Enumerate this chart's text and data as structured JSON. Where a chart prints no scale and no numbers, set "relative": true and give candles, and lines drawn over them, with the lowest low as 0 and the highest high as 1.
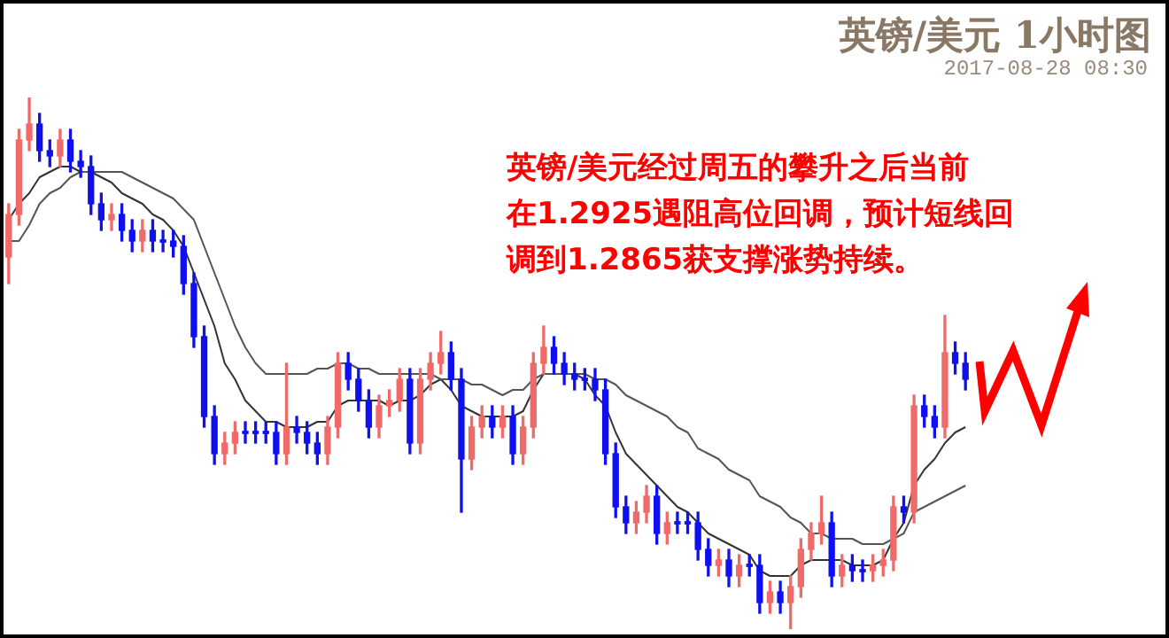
{
  "chart_data": {
    "type": "candlestick",
    "title": "英镑/美元 1小时图",
    "subtitle": "2017-08-28 08:30",
    "annotations": [
      "英镑/美元经过周五的攀升之后当前",
      "在1.2925遇阻高位回调，预计短线回",
      "调到1.2865获支撑涨势持续。"
    ],
    "relative": true,
    "categories": [
      null,
      null,
      null,
      null,
      null,
      null,
      null,
      null,
      null,
      null,
      null,
      null,
      null,
      null,
      null,
      null,
      null,
      null,
      null,
      null,
      null,
      null,
      null,
      null,
      null,
      null,
      null,
      null,
      null,
      null,
      null,
      null,
      null,
      null,
      null,
      null,
      null,
      null,
      null,
      null,
      null,
      null,
      null,
      null,
      null,
      null,
      null,
      null,
      null,
      null,
      null,
      null,
      null,
      null,
      null,
      null,
      null,
      null,
      null,
      null,
      null,
      null,
      null,
      null,
      null,
      null,
      null,
      null,
      null,
      null,
      null,
      null,
      null,
      null,
      null,
      null,
      null,
      null,
      null,
      null,
      null,
      null,
      null,
      null,
      null,
      null,
      null,
      null,
      null,
      null,
      null,
      null,
      null,
      null
    ],
    "ohlc": [
      [
        0.7,
        0.8,
        0.65,
        0.78
      ],
      [
        0.78,
        0.94,
        0.76,
        0.92
      ],
      [
        0.92,
        1,
        0.9,
        0.95
      ],
      [
        0.95,
        0.97,
        0.88,
        0.9
      ],
      [
        0.9,
        0.92,
        0.87,
        0.89
      ],
      [
        0.89,
        0.94,
        0.87,
        0.92
      ],
      [
        0.92,
        0.94,
        0.86,
        0.88
      ],
      [
        0.88,
        0.9,
        0.85,
        0.87
      ],
      [
        0.87,
        0.89,
        0.78,
        0.8
      ],
      [
        0.8,
        0.82,
        0.75,
        0.77
      ],
      [
        0.77,
        0.8,
        0.75,
        0.78
      ],
      [
        0.78,
        0.8,
        0.73,
        0.75
      ],
      [
        0.75,
        0.77,
        0.71,
        0.73
      ],
      [
        0.73,
        0.77,
        0.71,
        0.75
      ],
      [
        0.75,
        0.77,
        0.71,
        0.73
      ],
      [
        0.73,
        0.75,
        0.71,
        0.73
      ],
      [
        0.73,
        0.75,
        0.7,
        0.72
      ],
      [
        0.72,
        0.74,
        0.63,
        0.65
      ],
      [
        0.65,
        0.67,
        0.53,
        0.55
      ],
      [
        0.55,
        0.57,
        0.38,
        0.4
      ],
      [
        0.4,
        0.42,
        0.31,
        0.33
      ],
      [
        0.33,
        0.37,
        0.31,
        0.35
      ],
      [
        0.35,
        0.39,
        0.33,
        0.37
      ],
      [
        0.37,
        0.39,
        0.35,
        0.37
      ],
      [
        0.37,
        0.39,
        0.35,
        0.37
      ],
      [
        0.37,
        0.39,
        0.35,
        0.37
      ],
      [
        0.37,
        0.39,
        0.31,
        0.33
      ],
      [
        0.33,
        0.5,
        0.31,
        0.38
      ],
      [
        0.38,
        0.4,
        0.35,
        0.37
      ],
      [
        0.37,
        0.39,
        0.33,
        0.35
      ],
      [
        0.35,
        0.37,
        0.31,
        0.33
      ],
      [
        0.33,
        0.4,
        0.31,
        0.38
      ],
      [
        0.38,
        0.52,
        0.36,
        0.5
      ],
      [
        0.5,
        0.52,
        0.45,
        0.47
      ],
      [
        0.47,
        0.49,
        0.41,
        0.43
      ],
      [
        0.43,
        0.45,
        0.36,
        0.38
      ],
      [
        0.38,
        0.44,
        0.36,
        0.42
      ],
      [
        0.42,
        0.45,
        0.4,
        0.43
      ],
      [
        0.43,
        0.49,
        0.41,
        0.47
      ],
      [
        0.47,
        0.49,
        0.33,
        0.35
      ],
      [
        0.35,
        0.49,
        0.33,
        0.47
      ],
      [
        0.47,
        0.52,
        0.45,
        0.5
      ],
      [
        0.5,
        0.56,
        0.48,
        0.52
      ],
      [
        0.52,
        0.54,
        0.45,
        0.47
      ],
      [
        0.47,
        0.49,
        0.22,
        0.32
      ],
      [
        0.32,
        0.4,
        0.3,
        0.38
      ],
      [
        0.38,
        0.42,
        0.36,
        0.4
      ],
      [
        0.4,
        0.42,
        0.36,
        0.38
      ],
      [
        0.38,
        0.42,
        0.36,
        0.4
      ],
      [
        0.4,
        0.42,
        0.31,
        0.33
      ],
      [
        0.33,
        0.4,
        0.31,
        0.38
      ],
      [
        0.38,
        0.52,
        0.36,
        0.5
      ],
      [
        0.5,
        0.57,
        0.48,
        0.53
      ],
      [
        0.53,
        0.55,
        0.48,
        0.5
      ],
      [
        0.5,
        0.52,
        0.46,
        0.48
      ],
      [
        0.48,
        0.5,
        0.45,
        0.47
      ],
      [
        0.47,
        0.49,
        0.45,
        0.47
      ],
      [
        0.47,
        0.49,
        0.43,
        0.45
      ],
      [
        0.45,
        0.47,
        0.31,
        0.33
      ],
      [
        0.33,
        0.35,
        0.21,
        0.23
      ],
      [
        0.23,
        0.25,
        0.18,
        0.2
      ],
      [
        0.2,
        0.24,
        0.18,
        0.22
      ],
      [
        0.22,
        0.27,
        0.2,
        0.25
      ],
      [
        0.25,
        0.27,
        0.16,
        0.18
      ],
      [
        0.18,
        0.22,
        0.16,
        0.2
      ],
      [
        0.2,
        0.22,
        0.18,
        0.2
      ],
      [
        0.2,
        0.22,
        0.18,
        0.2
      ],
      [
        0.2,
        0.22,
        0.13,
        0.15
      ],
      [
        0.15,
        0.17,
        0.1,
        0.12
      ],
      [
        0.12,
        0.15,
        0.1,
        0.13
      ],
      [
        0.13,
        0.15,
        0.08,
        0.1
      ],
      [
        0.1,
        0.14,
        0.08,
        0.12
      ],
      [
        0.12,
        0.14,
        0.1,
        0.12
      ],
      [
        0.12,
        0.14,
        0.03,
        0.05
      ],
      [
        0.05,
        0.09,
        0.03,
        0.07
      ],
      [
        0.07,
        0.09,
        0.03,
        0.05
      ],
      [
        0.05,
        0.1,
        0,
        0.08
      ],
      [
        0.08,
        0.17,
        0.06,
        0.15
      ],
      [
        0.15,
        0.2,
        0.13,
        0.18
      ],
      [
        0.18,
        0.25,
        0.16,
        0.2
      ],
      [
        0.2,
        0.22,
        0.08,
        0.1
      ],
      [
        0.1,
        0.14,
        0.08,
        0.12
      ],
      [
        0.12,
        0.14,
        0.09,
        0.11
      ],
      [
        0.11,
        0.13,
        0.09,
        0.11
      ],
      [
        0.11,
        0.14,
        0.09,
        0.12
      ],
      [
        0.12,
        0.15,
        0.1,
        0.13
      ],
      [
        0.13,
        0.25,
        0.11,
        0.23
      ],
      [
        0.23,
        0.25,
        0.2,
        0.22
      ],
      [
        0.22,
        0.44,
        0.2,
        0.42
      ],
      [
        0.42,
        0.44,
        0.38,
        0.4
      ],
      [
        0.4,
        0.42,
        0.36,
        0.38
      ],
      [
        0.38,
        0.59,
        0.36,
        0.52
      ],
      [
        0.52,
        0.54,
        0.48,
        0.5
      ],
      [
        0.5,
        0.52,
        0.45,
        0.47
      ]
    ],
    "colors": [
      "#f06a6a",
      "#f06a6a",
      "#f06a6a",
      "#1010ee",
      "#1010ee",
      "#f06a6a",
      "#1010ee",
      "#1010ee",
      "#1010ee",
      "#1010ee",
      "#f06a6a",
      "#1010ee",
      "#1010ee",
      "#f06a6a",
      "#1010ee",
      "#1010ee",
      "#1010ee",
      "#1010ee",
      "#1010ee",
      "#1010ee",
      "#1010ee",
      "#f06a6a",
      "#f06a6a",
      "#1010ee",
      "#1010ee",
      "#1010ee",
      "#1010ee",
      "#f06a6a",
      "#1010ee",
      "#1010ee",
      "#1010ee",
      "#f06a6a",
      "#f06a6a",
      "#1010ee",
      "#1010ee",
      "#1010ee",
      "#f06a6a",
      "#f06a6a",
      "#f06a6a",
      "#1010ee",
      "#f06a6a",
      "#f06a6a",
      "#f06a6a",
      "#1010ee",
      "#1010ee",
      "#f06a6a",
      "#f06a6a",
      "#1010ee",
      "#f06a6a",
      "#1010ee",
      "#f06a6a",
      "#f06a6a",
      "#f06a6a",
      "#1010ee",
      "#1010ee",
      "#1010ee",
      "#1010ee",
      "#1010ee",
      "#1010ee",
      "#1010ee",
      "#1010ee",
      "#f06a6a",
      "#f06a6a",
      "#1010ee",
      "#f06a6a",
      "#1010ee",
      "#1010ee",
      "#1010ee",
      "#1010ee",
      "#f06a6a",
      "#1010ee",
      "#f06a6a",
      "#1010ee",
      "#1010ee",
      "#f06a6a",
      "#1010ee",
      "#f06a6a",
      "#f06a6a",
      "#f06a6a",
      "#f06a6a",
      "#1010ee",
      "#f06a6a",
      "#1010ee",
      "#1010ee",
      "#f06a6a",
      "#f06a6a",
      "#f06a6a",
      "#1010ee",
      "#f06a6a",
      "#1010ee",
      "#1010ee",
      "#f06a6a",
      "#1010ee",
      "#1010ee"
    ],
    "series": [
      {
        "type": "line",
        "color": "#555555",
        "values": [
          0.73,
          0.73,
          0.76,
          0.8,
          0.82,
          0.83,
          0.85,
          0.86,
          0.86,
          0.86,
          0.86,
          0.86,
          0.85,
          0.84,
          0.83,
          0.82,
          0.81,
          0.79,
          0.77,
          0.72,
          0.67,
          0.62,
          0.57,
          0.53,
          0.5,
          0.48,
          0.48,
          0.48,
          0.48,
          0.48,
          0.49,
          0.49,
          0.5,
          0.5,
          0.49,
          0.49,
          0.48,
          0.48,
          0.48,
          0.48,
          0.48,
          0.48,
          0.47,
          0.47,
          0.47,
          0.46,
          0.46,
          0.45,
          0.44,
          0.45,
          0.45,
          0.47,
          0.48,
          0.48,
          0.48,
          0.48,
          0.48,
          0.47,
          0.47,
          0.46,
          0.44,
          0.43,
          0.42,
          0.41,
          0.4,
          0.38,
          0.37,
          0.34,
          0.33,
          0.32,
          0.3,
          0.29,
          0.28,
          0.25,
          0.24,
          0.23,
          0.21,
          0.2,
          0.18,
          0.18,
          0.17,
          0.17,
          0.17,
          0.16,
          0.16,
          0.16,
          0.17,
          0.18,
          0.22,
          0.23,
          0.24,
          0.25,
          0.26,
          0.27
        ]
      },
      {
        "type": "line",
        "color": "#333333",
        "values": [
          0.77,
          0.8,
          0.82,
          0.85,
          0.86,
          0.87,
          0.87,
          0.86,
          0.86,
          0.85,
          0.84,
          0.82,
          0.81,
          0.8,
          0.78,
          0.77,
          0.75,
          0.72,
          0.67,
          0.62,
          0.57,
          0.5,
          0.47,
          0.43,
          0.41,
          0.39,
          0.39,
          0.38,
          0.38,
          0.38,
          0.39,
          0.39,
          0.42,
          0.43,
          0.43,
          0.43,
          0.43,
          0.42,
          0.43,
          0.43,
          0.44,
          0.46,
          0.47,
          0.45,
          0.42,
          0.41,
          0.4,
          0.4,
          0.4,
          0.4,
          0.41,
          0.45,
          0.48,
          0.48,
          0.48,
          0.48,
          0.47,
          0.44,
          0.42,
          0.37,
          0.33,
          0.31,
          0.29,
          0.27,
          0.25,
          0.23,
          0.22,
          0.2,
          0.18,
          0.17,
          0.16,
          0.15,
          0.14,
          0.11,
          0.1,
          0.1,
          0.1,
          0.12,
          0.13,
          0.13,
          0.13,
          0.13,
          0.12,
          0.12,
          0.12,
          0.13,
          0.17,
          0.2,
          0.27,
          0.3,
          0.32,
          0.35,
          0.37,
          0.38
        ]
      }
    ]
  }
}
